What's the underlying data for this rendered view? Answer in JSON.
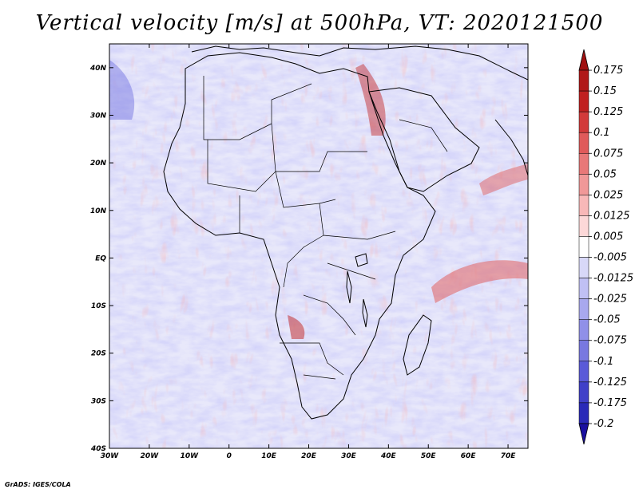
{
  "title": "Vertical velocity [m/s] at 500hPa, VT: 2020121500",
  "credit": "GrADS: IGES/COLA",
  "map": {
    "lon_range": [
      -30,
      75
    ],
    "lat_range": [
      -40,
      45
    ],
    "lon_ticks": [
      {
        "value": -30,
        "label": "30W"
      },
      {
        "value": -20,
        "label": "20W"
      },
      {
        "value": -10,
        "label": "10W"
      },
      {
        "value": 0,
        "label": "0"
      },
      {
        "value": 10,
        "label": "10E"
      },
      {
        "value": 20,
        "label": "20E"
      },
      {
        "value": 30,
        "label": "30E"
      },
      {
        "value": 40,
        "label": "40E"
      },
      {
        "value": 50,
        "label": "50E"
      },
      {
        "value": 60,
        "label": "60E"
      },
      {
        "value": 70,
        "label": "70E"
      }
    ],
    "lat_ticks": [
      {
        "value": 40,
        "label": "40N"
      },
      {
        "value": 30,
        "label": "30N"
      },
      {
        "value": 20,
        "label": "20N"
      },
      {
        "value": 10,
        "label": "10N"
      },
      {
        "value": 0,
        "label": "EQ"
      },
      {
        "value": -10,
        "label": "10S"
      },
      {
        "value": -20,
        "label": "20S"
      },
      {
        "value": -30,
        "label": "30S"
      },
      {
        "value": -40,
        "label": "40S"
      }
    ]
  },
  "colorbar": {
    "levels": [
      "0.175",
      "0.15",
      "0.125",
      "0.1",
      "0.075",
      "0.05",
      "0.025",
      "0.0125",
      "0.005",
      "-0.005",
      "-0.0125",
      "-0.025",
      "-0.05",
      "-0.075",
      "-0.1",
      "-0.125",
      "-0.175",
      "-0.2"
    ],
    "colors": [
      "#a01010",
      "#b01818",
      "#c02020",
      "#d23a3a",
      "#e05a5a",
      "#e87878",
      "#f09898",
      "#f8b8b8",
      "#fcd8d8",
      "#ffffff",
      "#d8d8f8",
      "#c0c0f4",
      "#a8a8ee",
      "#9090e8",
      "#7878e0",
      "#5a5ad8",
      "#4040c8",
      "#2a2ab8",
      "#1a10a0"
    ]
  },
  "colors": {
    "positive": "#e06060",
    "negative": "#7070e0",
    "land_outline": "#000000"
  }
}
